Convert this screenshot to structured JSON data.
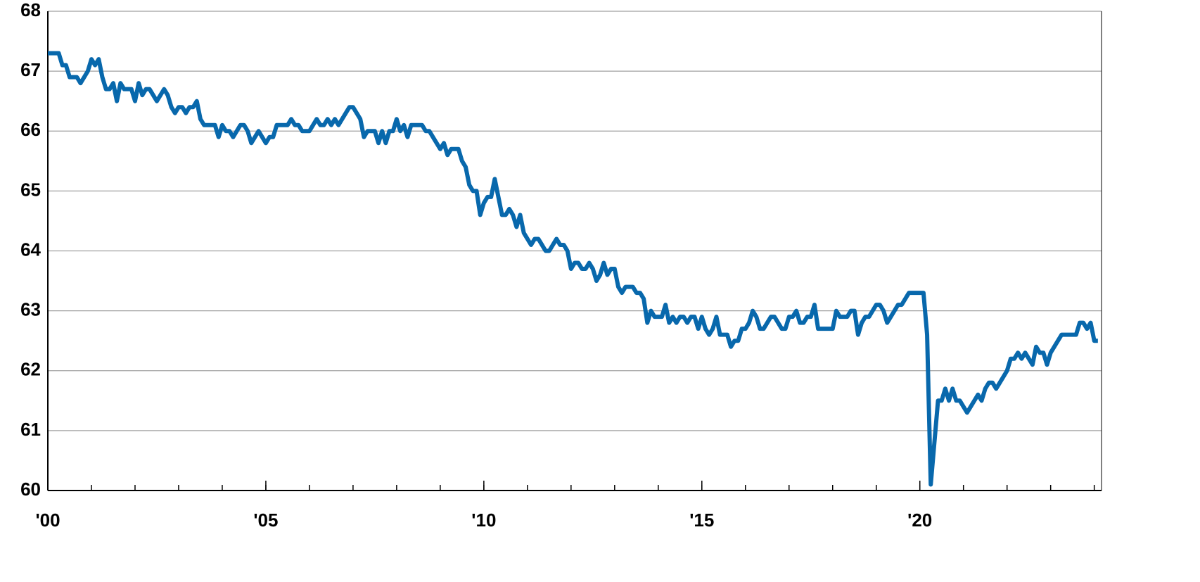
{
  "chart_data": {
    "type": "line",
    "categories": [
      "'00",
      null,
      null,
      null,
      null,
      null,
      null,
      null,
      null,
      null,
      null,
      null,
      null,
      null,
      null,
      null,
      null,
      null,
      null,
      null,
      null,
      null,
      null,
      null,
      null,
      null,
      null,
      null,
      null,
      null,
      null,
      null,
      null,
      null,
      null,
      null,
      null,
      null,
      null,
      null,
      null,
      null,
      null,
      null,
      null,
      null,
      null,
      null,
      null,
      null,
      null,
      null,
      null,
      null,
      null,
      null,
      null,
      null,
      null,
      null,
      "'05",
      null,
      null,
      null,
      null,
      null,
      null,
      null,
      null,
      null,
      null,
      null,
      null,
      null,
      null,
      null,
      null,
      null,
      null,
      null,
      null,
      null,
      null,
      null,
      null,
      null,
      null,
      null,
      null,
      null,
      null,
      null,
      null,
      null,
      null,
      null,
      null,
      null,
      null,
      null,
      null,
      null,
      null,
      null,
      null,
      null,
      null,
      null,
      null,
      null,
      null,
      null,
      null,
      null,
      null,
      null,
      null,
      null,
      null,
      null,
      "'10",
      null,
      null,
      null,
      null,
      null,
      null,
      null,
      null,
      null,
      null,
      null,
      null,
      null,
      null,
      null,
      null,
      null,
      null,
      null,
      null,
      null,
      null,
      null,
      null,
      null,
      null,
      null,
      null,
      null,
      null,
      null,
      null,
      null,
      null,
      null,
      null,
      null,
      null,
      null,
      null,
      null,
      null,
      null,
      null,
      null,
      null,
      null,
      null,
      null,
      null,
      null,
      null,
      null,
      null,
      null,
      null,
      null,
      null,
      null,
      "'15",
      null,
      null,
      null,
      null,
      null,
      null,
      null,
      null,
      null,
      null,
      null,
      null,
      null,
      null,
      null,
      null,
      null,
      null,
      null,
      null,
      null,
      null,
      null,
      null,
      null,
      null,
      null,
      null,
      null,
      null,
      null,
      null,
      null,
      null,
      null,
      null,
      null,
      null,
      null,
      null,
      null,
      null,
      null,
      null,
      null,
      null,
      null,
      null,
      null,
      null,
      null,
      null,
      null,
      null,
      null,
      null,
      null,
      null,
      null,
      "'20",
      null,
      null,
      null,
      null,
      null,
      null,
      null,
      null,
      null,
      null,
      null,
      null,
      null,
      null,
      null,
      null,
      null,
      null,
      null,
      null,
      null,
      null,
      null,
      null,
      null,
      null,
      null,
      null,
      null,
      null,
      null,
      null,
      null,
      null,
      null,
      null,
      null,
      null,
      null,
      null,
      null,
      null,
      null,
      null,
      null,
      null,
      null,
      null,
      null
    ],
    "values": [
      67.3,
      67.3,
      67.3,
      67.3,
      67.1,
      67.1,
      66.9,
      66.9,
      66.9,
      66.8,
      66.9,
      67.0,
      67.2,
      67.1,
      67.2,
      66.9,
      66.7,
      66.7,
      66.8,
      66.5,
      66.8,
      66.7,
      66.7,
      66.7,
      66.5,
      66.8,
      66.6,
      66.7,
      66.7,
      66.6,
      66.5,
      66.6,
      66.7,
      66.6,
      66.4,
      66.3,
      66.4,
      66.4,
      66.3,
      66.4,
      66.4,
      66.5,
      66.2,
      66.1,
      66.1,
      66.1,
      66.1,
      65.9,
      66.1,
      66.0,
      66.0,
      65.9,
      66.0,
      66.1,
      66.1,
      66.0,
      65.8,
      65.9,
      66.0,
      65.9,
      65.8,
      65.9,
      65.9,
      66.1,
      66.1,
      66.1,
      66.1,
      66.2,
      66.1,
      66.1,
      66.0,
      66.0,
      66.0,
      66.1,
      66.2,
      66.1,
      66.1,
      66.2,
      66.1,
      66.2,
      66.1,
      66.2,
      66.3,
      66.4,
      66.4,
      66.3,
      66.2,
      65.9,
      66.0,
      66.0,
      66.0,
      65.8,
      66.0,
      65.8,
      66.0,
      66.0,
      66.2,
      66.0,
      66.1,
      65.9,
      66.1,
      66.1,
      66.1,
      66.1,
      66.0,
      66.0,
      65.9,
      65.8,
      65.7,
      65.8,
      65.6,
      65.7,
      65.7,
      65.7,
      65.5,
      65.4,
      65.1,
      65.0,
      65.0,
      64.6,
      64.8,
      64.9,
      64.9,
      65.2,
      64.9,
      64.6,
      64.6,
      64.7,
      64.6,
      64.4,
      64.6,
      64.3,
      64.2,
      64.1,
      64.2,
      64.2,
      64.1,
      64.0,
      64.0,
      64.1,
      64.2,
      64.1,
      64.1,
      64.0,
      63.7,
      63.8,
      63.8,
      63.7,
      63.7,
      63.8,
      63.7,
      63.5,
      63.6,
      63.8,
      63.6,
      63.7,
      63.7,
      63.4,
      63.3,
      63.4,
      63.4,
      63.4,
      63.3,
      63.3,
      63.2,
      62.8,
      63.0,
      62.9,
      62.9,
      62.9,
      63.1,
      62.8,
      62.9,
      62.8,
      62.9,
      62.9,
      62.8,
      62.9,
      62.9,
      62.7,
      62.9,
      62.7,
      62.6,
      62.7,
      62.9,
      62.6,
      62.6,
      62.6,
      62.4,
      62.5,
      62.5,
      62.7,
      62.7,
      62.8,
      63.0,
      62.9,
      62.7,
      62.7,
      62.8,
      62.9,
      62.9,
      62.8,
      62.7,
      62.7,
      62.9,
      62.9,
      63.0,
      62.8,
      62.8,
      62.9,
      62.9,
      63.1,
      62.7,
      62.7,
      62.7,
      62.7,
      62.7,
      63.0,
      62.9,
      62.9,
      62.9,
      63.0,
      63.0,
      62.6,
      62.8,
      62.9,
      62.9,
      63.0,
      63.1,
      63.1,
      63.0,
      62.8,
      62.9,
      63.0,
      63.1,
      63.1,
      63.2,
      63.3,
      63.3,
      63.3,
      63.3,
      63.3,
      62.6,
      60.1,
      60.8,
      61.5,
      61.5,
      61.7,
      61.5,
      61.7,
      61.5,
      61.5,
      61.4,
      61.3,
      61.4,
      61.5,
      61.6,
      61.5,
      61.7,
      61.8,
      61.8,
      61.7,
      61.8,
      61.9,
      62.0,
      62.2,
      62.2,
      62.3,
      62.2,
      62.3,
      62.2,
      62.1,
      62.4,
      62.3,
      62.3,
      62.1,
      62.3,
      62.4,
      62.5,
      62.6,
      62.6,
      62.6,
      62.6,
      62.6,
      62.8,
      62.8,
      62.7,
      62.8,
      62.5,
      62.5
    ],
    "color": "#0868ac",
    "ylim": [
      60,
      68
    ],
    "yticks": [
      60,
      61,
      62,
      63,
      64,
      65,
      66,
      67,
      68
    ],
    "grid": true
  }
}
